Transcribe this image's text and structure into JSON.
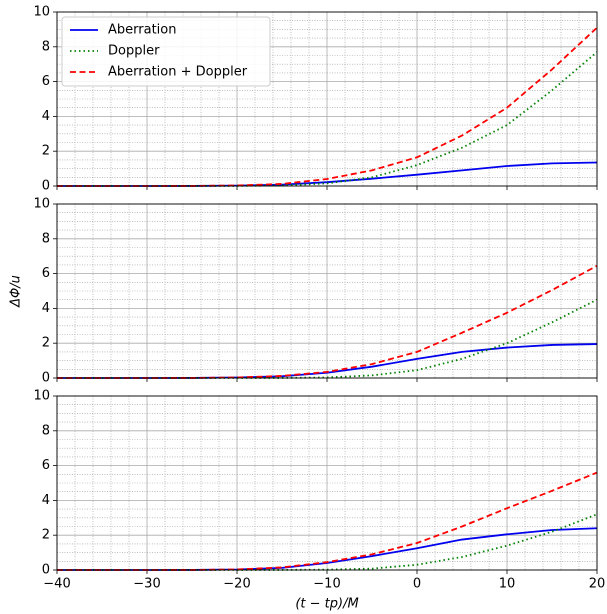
{
  "chart_data": [
    {
      "type": "line",
      "legend": "upper left",
      "grid": true,
      "minor_grid": true,
      "x": [
        -40,
        -35,
        -30,
        -25,
        -20,
        -15,
        -10,
        -5,
        0,
        5,
        10,
        15,
        20
      ],
      "xlim": [
        -40,
        20
      ],
      "xticks": [
        -40,
        -30,
        -20,
        -10,
        0,
        10,
        20
      ],
      "ylim": [
        0,
        10
      ],
      "yticks": [
        0,
        2,
        4,
        6,
        8,
        10
      ],
      "series": [
        {
          "name": "Aberration",
          "color": "#0000ee",
          "linestyle": "solid",
          "values": [
            0,
            0,
            0,
            0.005,
            0.02,
            0.08,
            0.22,
            0.42,
            0.65,
            0.9,
            1.15,
            1.3,
            1.35
          ]
        },
        {
          "name": "Doppler",
          "color": "green",
          "linestyle": "dotted",
          "values": [
            0,
            0,
            0,
            0,
            0.005,
            0.03,
            0.15,
            0.5,
            1.2,
            2.2,
            3.5,
            5.5,
            7.7
          ]
        },
        {
          "name": "Aberration + Doppler",
          "color": "red",
          "linestyle": "dashed",
          "values": [
            0,
            0,
            0,
            0.005,
            0.03,
            0.12,
            0.4,
            0.9,
            1.65,
            2.9,
            4.5,
            6.7,
            9.1
          ]
        }
      ]
    },
    {
      "type": "line",
      "grid": true,
      "minor_grid": true,
      "ylabel": "ΔΦ/u",
      "x": [
        -40,
        -35,
        -30,
        -25,
        -20,
        -15,
        -10,
        -5,
        0,
        5,
        10,
        15,
        20
      ],
      "xlim": [
        -40,
        20
      ],
      "xticks": [
        -40,
        -30,
        -20,
        -10,
        0,
        10,
        20
      ],
      "ylim": [
        0,
        10
      ],
      "yticks": [
        0,
        2,
        4,
        6,
        8,
        10
      ],
      "series": [
        {
          "name": "Aberration",
          "color": "#0000ee",
          "linestyle": "solid",
          "values": [
            0,
            0,
            0,
            0.005,
            0.03,
            0.1,
            0.3,
            0.65,
            1.1,
            1.5,
            1.75,
            1.9,
            1.95
          ]
        },
        {
          "name": "Doppler",
          "color": "green",
          "linestyle": "dotted",
          "values": [
            0,
            0,
            0,
            0,
            0,
            0.005,
            0.03,
            0.15,
            0.45,
            1.1,
            2.0,
            3.2,
            4.5
          ]
        },
        {
          "name": "Aberration + Doppler",
          "color": "red",
          "linestyle": "dashed",
          "values": [
            0,
            0,
            0,
            0.005,
            0.03,
            0.12,
            0.35,
            0.8,
            1.5,
            2.6,
            3.75,
            5.05,
            6.45
          ]
        }
      ]
    },
    {
      "type": "line",
      "grid": true,
      "minor_grid": true,
      "xlabel": "(t − tp)/M",
      "x": [
        -40,
        -35,
        -30,
        -25,
        -20,
        -15,
        -10,
        -5,
        0,
        5,
        10,
        15,
        20
      ],
      "xlim": [
        -40,
        20
      ],
      "xticks": [
        {
          "value": -40,
          "label": "−40"
        },
        {
          "value": -30,
          "label": "−30"
        },
        {
          "value": -20,
          "label": "−20"
        },
        {
          "value": -10,
          "label": "−10"
        },
        0,
        10,
        20
      ],
      "ylim": [
        0,
        10
      ],
      "yticks": [
        0,
        2,
        4,
        6,
        8,
        10
      ],
      "series": [
        {
          "name": "Aberration",
          "color": "#0000ee",
          "linestyle": "solid",
          "values": [
            0,
            0,
            0,
            0.005,
            0.03,
            0.12,
            0.4,
            0.8,
            1.25,
            1.75,
            2.05,
            2.3,
            2.4
          ]
        },
        {
          "name": "Doppler",
          "color": "green",
          "linestyle": "dotted",
          "values": [
            0,
            0,
            0,
            0,
            0,
            0.005,
            0.02,
            0.08,
            0.3,
            0.75,
            1.4,
            2.2,
            3.2
          ]
        },
        {
          "name": "Aberration + Doppler",
          "color": "red",
          "linestyle": "dashed",
          "values": [
            0,
            0,
            0,
            0.005,
            0.03,
            0.15,
            0.45,
            0.9,
            1.55,
            2.5,
            3.55,
            4.55,
            5.6
          ]
        }
      ]
    }
  ]
}
